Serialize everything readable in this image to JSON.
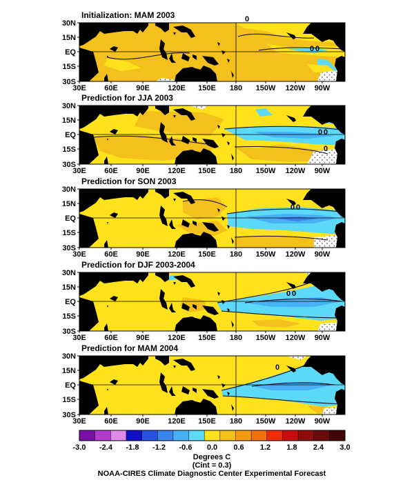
{
  "panels": [
    {
      "title": "Initialization: MAM 2003"
    },
    {
      "title": "Prediction for JJA 2003"
    },
    {
      "title": "Prediction for SON 2003"
    },
    {
      "title": "Prediction for DJF 2003-2004"
    },
    {
      "title": "Prediction for MAM 2004"
    }
  ],
  "lat_labels": [
    "30N",
    "15N",
    "EQ",
    "15S",
    "30S"
  ],
  "lon_labels": [
    "30E",
    "60E",
    "90E",
    "120E",
    "150E",
    "180",
    "150W",
    "120W",
    "90W"
  ],
  "contour_labels": [
    "0",
    "0",
    "0",
    "0",
    "0",
    "0",
    "0",
    "0",
    "0",
    "0",
    "0"
  ],
  "colorbar": {
    "colors": [
      "#7a10a8",
      "#b23ccd",
      "#e08ae8",
      "#1010c8",
      "#2a50e0",
      "#3a84ee",
      "#48b0f4",
      "#5cd8f8",
      "#ffe21c",
      "#f4c01c",
      "#f49a12",
      "#f2700c",
      "#ee2c06",
      "#c60c0c",
      "#8e0e0e",
      "#6a0a0a",
      "#400606"
    ],
    "tick_labels": [
      "-3.0",
      "-2.4",
      "-1.8",
      "-1.2",
      "-0.6",
      "0.0",
      "0.6",
      "1.2",
      "1.8",
      "2.4",
      "3.0"
    ]
  },
  "units": "Degrees C",
  "cint": "(Cint = 0.3)",
  "credit": "NOAA-CIRES Climate Diagnostic Center Experimental Forecast"
}
